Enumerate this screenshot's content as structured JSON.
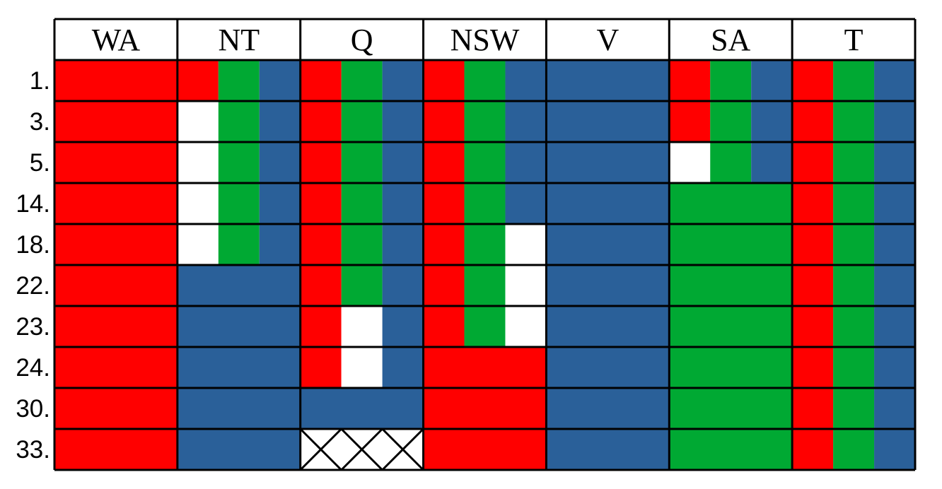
{
  "colors": {
    "red": "#ff0000",
    "green": "#00a933",
    "blue": "#2a6099",
    "empty": "#ffffff",
    "line": "#000000"
  },
  "domain_values": [
    "red",
    "green",
    "blue"
  ],
  "columns": [
    "WA",
    "NT",
    "Q",
    "NSW",
    "V",
    "SA",
    "T"
  ],
  "rows": [
    {
      "label": "1.",
      "cells": [
        [
          "red"
        ],
        [
          "red",
          "green",
          "blue"
        ],
        [
          "red",
          "green",
          "blue"
        ],
        [
          "red",
          "green",
          "blue"
        ],
        [
          "blue"
        ],
        [
          "red",
          "green",
          "blue"
        ],
        [
          "red",
          "green",
          "blue"
        ]
      ]
    },
    {
      "label": "3.",
      "cells": [
        [
          "red"
        ],
        [
          "green",
          "blue"
        ],
        [
          "red",
          "green",
          "blue"
        ],
        [
          "red",
          "green",
          "blue"
        ],
        [
          "blue"
        ],
        [
          "red",
          "green",
          "blue"
        ],
        [
          "red",
          "green",
          "blue"
        ]
      ]
    },
    {
      "label": "5.",
      "cells": [
        [
          "red"
        ],
        [
          "green",
          "blue"
        ],
        [
          "red",
          "green",
          "blue"
        ],
        [
          "red",
          "green",
          "blue"
        ],
        [
          "blue"
        ],
        [
          "green",
          "blue"
        ],
        [
          "red",
          "green",
          "blue"
        ]
      ]
    },
    {
      "label": "14.",
      "cells": [
        [
          "red"
        ],
        [
          "green",
          "blue"
        ],
        [
          "red",
          "green",
          "blue"
        ],
        [
          "red",
          "green",
          "blue"
        ],
        [
          "blue"
        ],
        [
          "green"
        ],
        [
          "red",
          "green",
          "blue"
        ]
      ]
    },
    {
      "label": "18.",
      "cells": [
        [
          "red"
        ],
        [
          "green",
          "blue"
        ],
        [
          "red",
          "green",
          "blue"
        ],
        [
          "red",
          "green"
        ],
        [
          "blue"
        ],
        [
          "green"
        ],
        [
          "red",
          "green",
          "blue"
        ]
      ]
    },
    {
      "label": "22.",
      "cells": [
        [
          "red"
        ],
        [
          "blue"
        ],
        [
          "red",
          "green",
          "blue"
        ],
        [
          "red",
          "green"
        ],
        [
          "blue"
        ],
        [
          "green"
        ],
        [
          "red",
          "green",
          "blue"
        ]
      ]
    },
    {
      "label": "23.",
      "cells": [
        [
          "red"
        ],
        [
          "blue"
        ],
        [
          "red",
          "blue"
        ],
        [
          "red",
          "green"
        ],
        [
          "blue"
        ],
        [
          "green"
        ],
        [
          "red",
          "green",
          "blue"
        ]
      ]
    },
    {
      "label": "24.",
      "cells": [
        [
          "red"
        ],
        [
          "blue"
        ],
        [
          "red",
          "blue"
        ],
        [
          "red"
        ],
        [
          "blue"
        ],
        [
          "green"
        ],
        [
          "red",
          "green",
          "blue"
        ]
      ]
    },
    {
      "label": "30.",
      "cells": [
        [
          "red"
        ],
        [
          "blue"
        ],
        [
          "blue"
        ],
        [
          "red"
        ],
        [
          "blue"
        ],
        [
          "green"
        ],
        [
          "red",
          "green",
          "blue"
        ]
      ]
    },
    {
      "label": "33.",
      "cells": [
        [
          "red"
        ],
        [
          "blue"
        ],
        [],
        [
          "red"
        ],
        [
          "blue"
        ],
        [
          "green"
        ],
        [
          "red",
          "green",
          "blue"
        ]
      ]
    }
  ]
}
